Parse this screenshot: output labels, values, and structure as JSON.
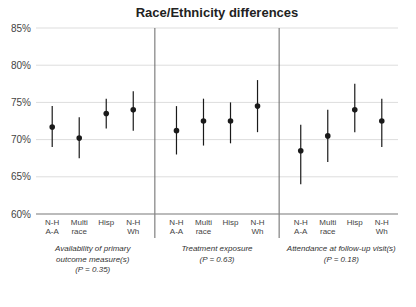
{
  "chart_data": {
    "type": "dot",
    "title": "Race/Ethnicity differences",
    "panels": [
      {
        "label": "Availability of primary\noutcome measure(s)\n(P = 0.35)",
        "categories": [
          "N-H\nA-A",
          "Multi\nrace",
          "Hisp",
          "N-H\nWh"
        ],
        "values": [
          71.7,
          70.2,
          73.5,
          74.0
        ],
        "ci_low": [
          69.0,
          67.5,
          71.5,
          71.2
        ],
        "ci_high": [
          74.5,
          73.0,
          75.5,
          76.5
        ]
      },
      {
        "label": "Treatment exposure\n(P = 0.63)",
        "categories": [
          "N-H\nA-A",
          "Multi\nrace",
          "Hisp",
          "N-H\nWh"
        ],
        "values": [
          71.2,
          72.5,
          72.5,
          74.5
        ],
        "ci_low": [
          68.0,
          69.2,
          69.5,
          71.0
        ],
        "ci_high": [
          74.5,
          75.5,
          75.0,
          78.0
        ]
      },
      {
        "label": "Attendance at follow-up visit(s)\n(P = 0.18)",
        "categories": [
          "N-H\nA-A",
          "Multi\nrace",
          "Hisp",
          "N-H\nWh"
        ],
        "values": [
          68.5,
          70.5,
          74.0,
          72.5
        ],
        "ci_low": [
          64.0,
          67.0,
          71.0,
          69.0
        ],
        "ci_high": [
          72.0,
          74.0,
          77.5,
          75.5
        ]
      }
    ],
    "ylim": [
      60,
      85
    ],
    "yticks": [
      {
        "value": 60,
        "label": "60%"
      },
      {
        "value": 65,
        "label": "65%"
      },
      {
        "value": 70,
        "label": "70%"
      },
      {
        "value": 75,
        "label": "75%"
      },
      {
        "value": 80,
        "label": "80%"
      },
      {
        "value": 85,
        "label": "85%"
      }
    ],
    "grid": true,
    "color": "#1a1a1a"
  }
}
